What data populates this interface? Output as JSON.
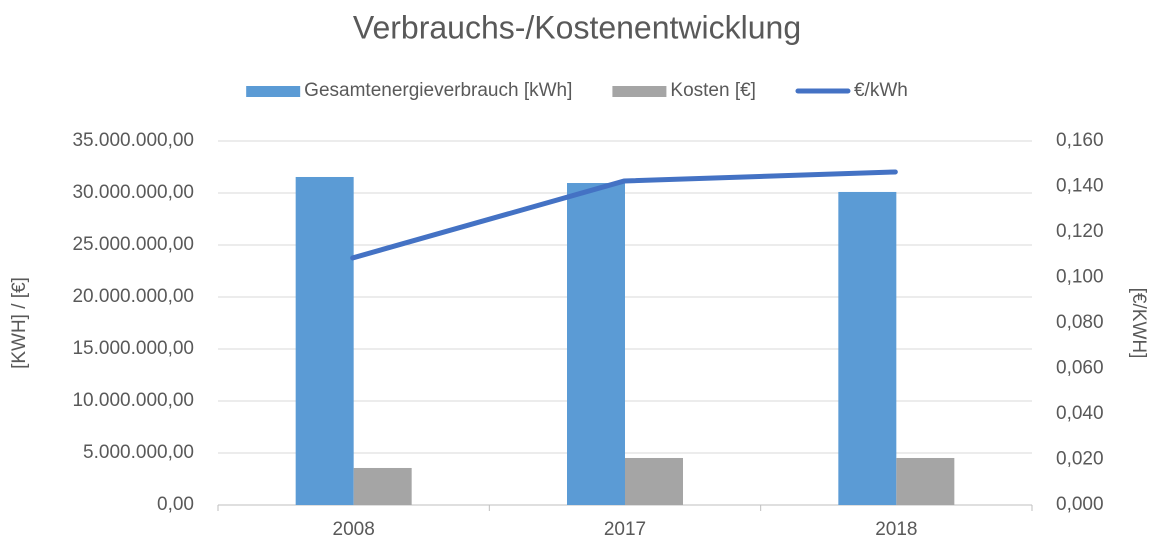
{
  "chart_data": {
    "type": "bar",
    "title": "Verbrauchs-/Kostenentwicklung",
    "categories": [
      "2008",
      "2017",
      "2018"
    ],
    "series": [
      {
        "name": "Gesamtenergieverbrauch [kWh]",
        "color": "#5b9bd5",
        "type": "bar",
        "values": [
          31540000,
          30960000,
          30100000
        ]
      },
      {
        "name": "Kosten [€]",
        "color": "#a5a5a5",
        "type": "bar",
        "values": [
          3560000,
          4520000,
          4520000
        ]
      },
      {
        "name": "€/kWh",
        "color": "#4472c4",
        "type": "line",
        "axis": "y2",
        "values": [
          0.1086,
          0.1424,
          0.1464
        ]
      }
    ],
    "ylabel": "[KWH] / [€]",
    "y2label": "[€/KWH]",
    "ylim": [
      0,
      35000000
    ],
    "yticks": [
      {
        "value": 0,
        "label": "0,00"
      },
      {
        "value": 5000000,
        "label": "5.000.000,00"
      },
      {
        "value": 10000000,
        "label": "10.000.000,00"
      },
      {
        "value": 15000000,
        "label": "15.000.000,00"
      },
      {
        "value": 20000000,
        "label": "20.000.000,00"
      },
      {
        "value": 25000000,
        "label": "25.000.000,00"
      },
      {
        "value": 30000000,
        "label": "30.000.000,00"
      },
      {
        "value": 35000000,
        "label": "35.000.000,00"
      }
    ],
    "y2lim": [
      0,
      0.16
    ],
    "y2ticks": [
      {
        "value": 0,
        "label": "0,000"
      },
      {
        "value": 0.02,
        "label": "0,020"
      },
      {
        "value": 0.04,
        "label": "0,040"
      },
      {
        "value": 0.06,
        "label": "0,060"
      },
      {
        "value": 0.08,
        "label": "0,080"
      },
      {
        "value": 0.1,
        "label": "0,100"
      },
      {
        "value": 0.12,
        "label": "0,120"
      },
      {
        "value": 0.14,
        "label": "0,140"
      },
      {
        "value": 0.16,
        "label": "0,160"
      }
    ],
    "grid": true,
    "legend": "top"
  }
}
